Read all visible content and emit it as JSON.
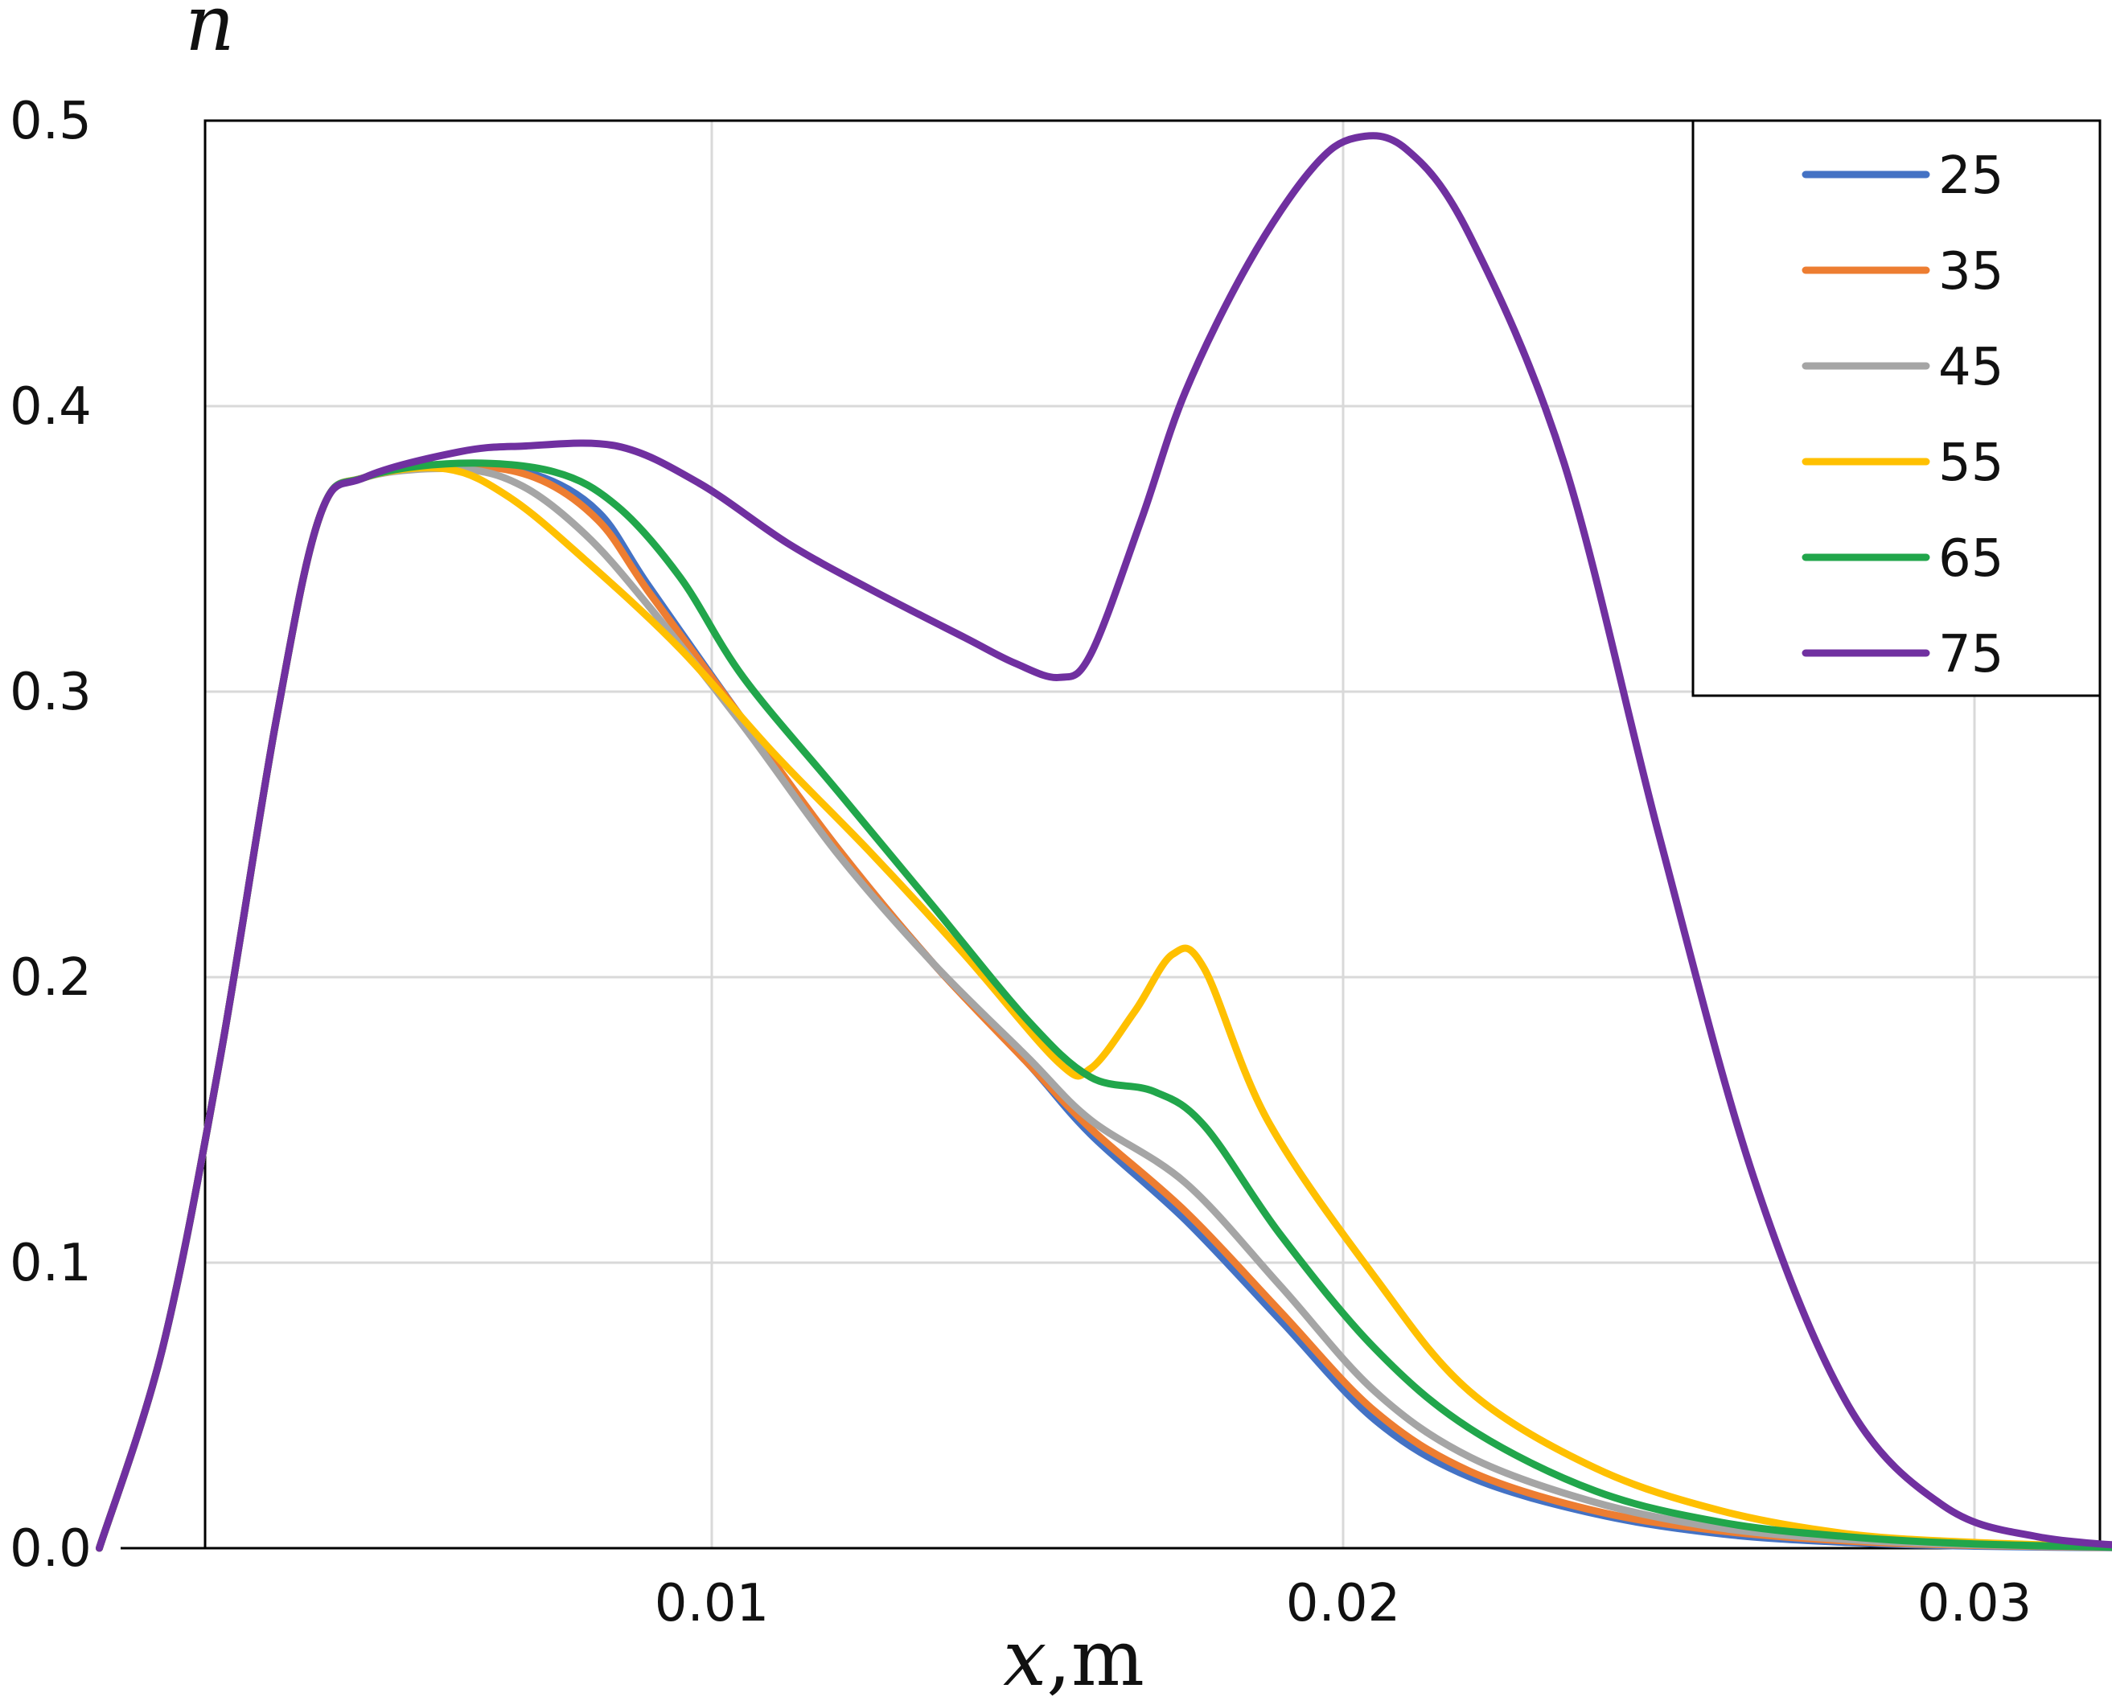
{
  "chart_data": {
    "type": "line",
    "title": "",
    "ylabel": "n",
    "xlabel_var": "x",
    "xlabel_unit": ",m",
    "xlim": [
      0.001,
      0.033
    ],
    "ylim": [
      0.0,
      0.5
    ],
    "xticks": [
      {
        "v": 0.01,
        "label": "0.01"
      },
      {
        "v": 0.02,
        "label": "0.02"
      },
      {
        "v": 0.03,
        "label": "0.03"
      }
    ],
    "yticks": [
      {
        "v": 0.0,
        "label": "0.0"
      },
      {
        "v": 0.1,
        "label": "0.1"
      },
      {
        "v": 0.2,
        "label": "0.2"
      },
      {
        "v": 0.3,
        "label": "0.3"
      },
      {
        "v": 0.4,
        "label": "0.4"
      },
      {
        "v": 0.5,
        "label": "0.5"
      }
    ],
    "grid": true,
    "legend_position": "top-right",
    "series": [
      {
        "name": "25",
        "color": "#4472C4",
        "points": [
          [
            0.0003,
            0.0
          ],
          [
            0.0013,
            0.07
          ],
          [
            0.0022,
            0.17
          ],
          [
            0.0031,
            0.29
          ],
          [
            0.0038,
            0.362
          ],
          [
            0.0045,
            0.375
          ],
          [
            0.006,
            0.379
          ],
          [
            0.0072,
            0.376
          ],
          [
            0.0082,
            0.363
          ],
          [
            0.009,
            0.337
          ],
          [
            0.0105,
            0.29
          ],
          [
            0.012,
            0.245
          ],
          [
            0.0135,
            0.205
          ],
          [
            0.015,
            0.17
          ],
          [
            0.016,
            0.145
          ],
          [
            0.0175,
            0.115
          ],
          [
            0.019,
            0.08
          ],
          [
            0.0205,
            0.045
          ],
          [
            0.022,
            0.025
          ],
          [
            0.024,
            0.012
          ],
          [
            0.026,
            0.005
          ],
          [
            0.028,
            0.002
          ],
          [
            0.03,
            0.0007
          ],
          [
            0.033,
            0.0
          ]
        ]
      },
      {
        "name": "35",
        "color": "#ED7D31",
        "points": [
          [
            0.0003,
            0.0
          ],
          [
            0.0013,
            0.07
          ],
          [
            0.0022,
            0.17
          ],
          [
            0.0031,
            0.29
          ],
          [
            0.0038,
            0.362
          ],
          [
            0.0045,
            0.375
          ],
          [
            0.006,
            0.379
          ],
          [
            0.0072,
            0.375
          ],
          [
            0.0082,
            0.36
          ],
          [
            0.009,
            0.335
          ],
          [
            0.0105,
            0.29
          ],
          [
            0.012,
            0.245
          ],
          [
            0.0135,
            0.205
          ],
          [
            0.015,
            0.17
          ],
          [
            0.016,
            0.147
          ],
          [
            0.0175,
            0.118
          ],
          [
            0.019,
            0.083
          ],
          [
            0.0205,
            0.048
          ],
          [
            0.022,
            0.027
          ],
          [
            0.024,
            0.013
          ],
          [
            0.026,
            0.006
          ],
          [
            0.028,
            0.0025
          ],
          [
            0.03,
            0.001
          ],
          [
            0.033,
            0.0
          ]
        ]
      },
      {
        "name": "45",
        "color": "#A5A5A5",
        "points": [
          [
            0.0003,
            0.0
          ],
          [
            0.0013,
            0.07
          ],
          [
            0.0022,
            0.17
          ],
          [
            0.0031,
            0.29
          ],
          [
            0.0038,
            0.362
          ],
          [
            0.0045,
            0.375
          ],
          [
            0.006,
            0.378
          ],
          [
            0.007,
            0.372
          ],
          [
            0.008,
            0.355
          ],
          [
            0.009,
            0.33
          ],
          [
            0.0105,
            0.288
          ],
          [
            0.012,
            0.243
          ],
          [
            0.0135,
            0.205
          ],
          [
            0.015,
            0.172
          ],
          [
            0.016,
            0.15
          ],
          [
            0.0175,
            0.128
          ],
          [
            0.019,
            0.092
          ],
          [
            0.0205,
            0.055
          ],
          [
            0.022,
            0.032
          ],
          [
            0.024,
            0.016
          ],
          [
            0.026,
            0.007
          ],
          [
            0.028,
            0.003
          ],
          [
            0.03,
            0.0012
          ],
          [
            0.033,
            0.0
          ]
        ]
      },
      {
        "name": "55",
        "color": "#FFC000",
        "points": [
          [
            0.0003,
            0.0
          ],
          [
            0.0013,
            0.07
          ],
          [
            0.0022,
            0.17
          ],
          [
            0.0031,
            0.29
          ],
          [
            0.0038,
            0.362
          ],
          [
            0.0045,
            0.375
          ],
          [
            0.0058,
            0.378
          ],
          [
            0.0068,
            0.368
          ],
          [
            0.008,
            0.346
          ],
          [
            0.0095,
            0.315
          ],
          [
            0.011,
            0.278
          ],
          [
            0.0125,
            0.244
          ],
          [
            0.014,
            0.208
          ],
          [
            0.0155,
            0.17
          ],
          [
            0.016,
            0.168
          ],
          [
            0.0167,
            0.188
          ],
          [
            0.0173,
            0.208
          ],
          [
            0.0178,
            0.203
          ],
          [
            0.0188,
            0.15
          ],
          [
            0.0205,
            0.095
          ],
          [
            0.022,
            0.055
          ],
          [
            0.024,
            0.028
          ],
          [
            0.026,
            0.013
          ],
          [
            0.028,
            0.005
          ],
          [
            0.03,
            0.002
          ],
          [
            0.033,
            0.0
          ]
        ]
      },
      {
        "name": "65",
        "color": "#21A64B",
        "points": [
          [
            0.0003,
            0.0
          ],
          [
            0.0013,
            0.07
          ],
          [
            0.0022,
            0.17
          ],
          [
            0.0031,
            0.29
          ],
          [
            0.0038,
            0.362
          ],
          [
            0.0045,
            0.375
          ],
          [
            0.006,
            0.38
          ],
          [
            0.0075,
            0.377
          ],
          [
            0.0085,
            0.365
          ],
          [
            0.0095,
            0.34
          ],
          [
            0.0105,
            0.305
          ],
          [
            0.012,
            0.265
          ],
          [
            0.0135,
            0.225
          ],
          [
            0.015,
            0.185
          ],
          [
            0.016,
            0.165
          ],
          [
            0.017,
            0.16
          ],
          [
            0.0178,
            0.148
          ],
          [
            0.019,
            0.11
          ],
          [
            0.0205,
            0.07
          ],
          [
            0.022,
            0.042
          ],
          [
            0.024,
            0.02
          ],
          [
            0.026,
            0.009
          ],
          [
            0.028,
            0.004
          ],
          [
            0.03,
            0.0015
          ],
          [
            0.033,
            0.0
          ]
        ]
      },
      {
        "name": "75",
        "color": "#7030A0",
        "points": [
          [
            0.0003,
            0.0
          ],
          [
            0.0013,
            0.07
          ],
          [
            0.0022,
            0.17
          ],
          [
            0.0031,
            0.29
          ],
          [
            0.0038,
            0.362
          ],
          [
            0.0045,
            0.375
          ],
          [
            0.006,
            0.384
          ],
          [
            0.007,
            0.386
          ],
          [
            0.0085,
            0.386
          ],
          [
            0.0098,
            0.373
          ],
          [
            0.0112,
            0.352
          ],
          [
            0.0125,
            0.336
          ],
          [
            0.014,
            0.319
          ],
          [
            0.0148,
            0.31
          ],
          [
            0.0155,
            0.305
          ],
          [
            0.016,
            0.313
          ],
          [
            0.0168,
            0.36
          ],
          [
            0.0175,
            0.405
          ],
          [
            0.0185,
            0.45
          ],
          [
            0.0195,
            0.483
          ],
          [
            0.0202,
            0.494
          ],
          [
            0.021,
            0.49
          ],
          [
            0.022,
            0.46
          ],
          [
            0.0235,
            0.38
          ],
          [
            0.025,
            0.25
          ],
          [
            0.0265,
            0.13
          ],
          [
            0.028,
            0.05
          ],
          [
            0.0295,
            0.015
          ],
          [
            0.031,
            0.004
          ],
          [
            0.033,
            0.0
          ]
        ]
      }
    ]
  }
}
